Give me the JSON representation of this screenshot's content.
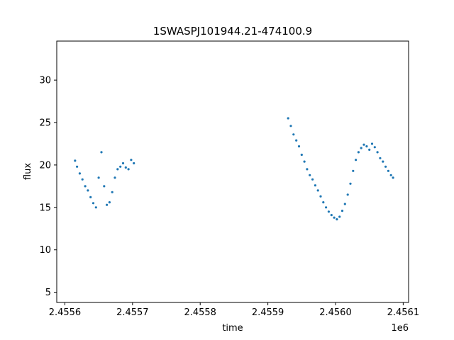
{
  "chart_data": {
    "type": "scatter",
    "title": "1SWASPJ101944.21-474100.9",
    "xlabel": "time",
    "ylabel": "flux",
    "x_offset_label": "1e6",
    "x_ticks": [
      2.4556,
      2.4557,
      2.4558,
      2.4559,
      2.456,
      2.4561
    ],
    "x_tick_labels": [
      "2.4556",
      "2.4557",
      "2.4558",
      "2.4559",
      "2.4560",
      "2.4561"
    ],
    "y_ticks": [
      5,
      10,
      15,
      20,
      25,
      30
    ],
    "y_tick_labels": [
      "5",
      "10",
      "15",
      "20",
      "25",
      "30"
    ],
    "xlim": [
      2455588,
      2456108
    ],
    "ylim": [
      3.8,
      34.6
    ],
    "grid": false,
    "legend": "none",
    "marker_color": "#1f77b4",
    "series": [
      {
        "x": [
          2455615,
          2455618,
          2455622,
          2455626,
          2455630,
          2455634,
          2455638,
          2455642,
          2455646,
          2455650,
          2455654,
          2455658,
          2455662,
          2455666,
          2455670,
          2455674,
          2455678,
          2455682,
          2455686,
          2455690,
          2455694,
          2455698,
          2455702,
          2455930,
          2455934,
          2455938,
          2455942,
          2455946,
          2455950,
          2455954,
          2455958,
          2455962,
          2455966,
          2455970,
          2455974,
          2455978,
          2455982,
          2455986,
          2455990,
          2455994,
          2455998,
          2456002,
          2456006,
          2456010,
          2456014,
          2456018,
          2456022,
          2456026,
          2456030,
          2456034,
          2456038,
          2456042,
          2456046,
          2456050,
          2456054,
          2456058,
          2456062,
          2456066,
          2456070,
          2456074,
          2456078,
          2456082,
          2456085
        ],
        "y": [
          20.5,
          19.8,
          19.0,
          18.3,
          17.5,
          17.0,
          16.2,
          15.5,
          15.0,
          18.5,
          21.5,
          17.5,
          15.3,
          15.6,
          16.8,
          18.5,
          19.5,
          19.8,
          20.2,
          19.7,
          19.5,
          20.6,
          20.2,
          25.5,
          24.6,
          23.6,
          22.9,
          22.2,
          21.2,
          20.4,
          19.5,
          18.8,
          18.3,
          17.6,
          17.0,
          16.3,
          15.6,
          15.0,
          14.5,
          14.1,
          13.8,
          13.6,
          13.9,
          14.6,
          15.4,
          16.5,
          17.8,
          19.3,
          20.6,
          21.5,
          22.0,
          22.4,
          22.2,
          21.8,
          22.5,
          22.1,
          21.5,
          20.8,
          20.4,
          19.8,
          19.3,
          18.8,
          18.5
        ]
      }
    ]
  }
}
